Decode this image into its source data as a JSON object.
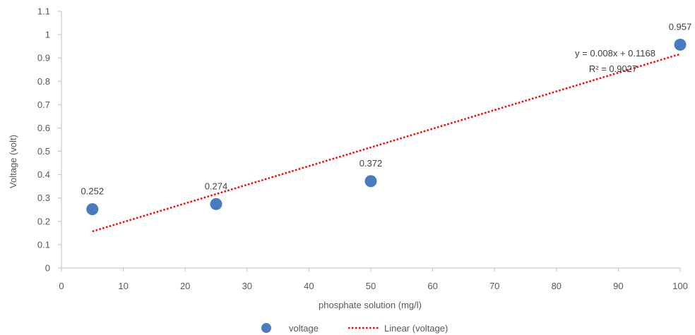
{
  "chart_data": {
    "type": "scatter",
    "title": "",
    "xlabel": "phosphate solution (mg/l)",
    "ylabel": "Voltage (volt)",
    "xlim": [
      0,
      100
    ],
    "ylim": [
      0,
      1.1
    ],
    "x_ticks": [
      "0",
      "10",
      "20",
      "30",
      "40",
      "50",
      "60",
      "70",
      "80",
      "90",
      "100"
    ],
    "y_ticks": [
      "0",
      "0.1",
      "0.2",
      "0.3",
      "0.4",
      "0.5",
      "0.6",
      "0.7",
      "0.8",
      "0.9",
      "1",
      "1.1"
    ],
    "grid": false,
    "legend_position": "bottom",
    "series": [
      {
        "name": "voltage",
        "type": "scatter",
        "color": "#4a7bbf",
        "x": [
          5,
          25,
          50,
          100
        ],
        "y": [
          0.252,
          0.274,
          0.372,
          0.957
        ],
        "labels": [
          "0.252",
          "0.274",
          "0.372",
          "0.957"
        ]
      },
      {
        "name": "Linear (voltage)",
        "type": "trendline",
        "style": "dotted",
        "color": "#ff0000",
        "slope": 0.008,
        "intercept": 0.1168,
        "x_range": [
          5,
          100
        ]
      }
    ],
    "annotations": {
      "equation": "y = 0.008x + 0.1168",
      "r_squared": "R² = 0.9027"
    }
  }
}
